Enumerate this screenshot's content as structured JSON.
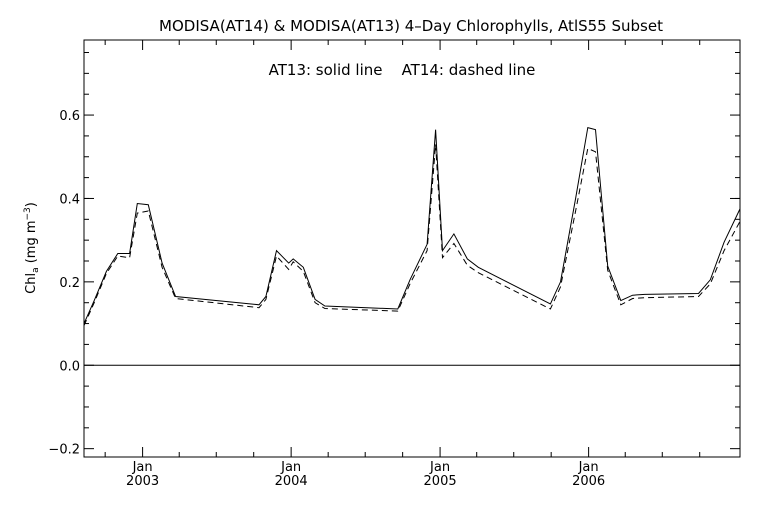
{
  "chart_data": {
    "type": "line",
    "title": "MODISA(AT14) & MODISA(AT13) 4–Day Chlorophylls, AtlS55 Subset",
    "annotation": "AT13: solid line    AT14: dashed line",
    "ylabel": "Chl",
    "ylabel_subscript": "a",
    "ylabel_units": " (mg m",
    "ylabel_superscript": "−3",
    "ylabel_close": ")",
    "xlim": [
      "2002-08-10",
      "2007-01-08"
    ],
    "ylim": [
      -0.22,
      0.78
    ],
    "y_ticks": [
      {
        "value": -0.2,
        "label": "−0.2"
      },
      {
        "value": 0.0,
        "label": "0.0"
      },
      {
        "value": 0.2,
        "label": "0.2"
      },
      {
        "value": 0.4,
        "label": "0.4"
      },
      {
        "value": 0.6,
        "label": "0.6"
      }
    ],
    "x_ticks": [
      {
        "date": "2003-01-01",
        "month": "Jan",
        "year": "2003"
      },
      {
        "date": "2004-01-01",
        "month": "Jan",
        "year": "2004"
      },
      {
        "date": "2005-01-01",
        "month": "Jan",
        "year": "2005"
      },
      {
        "date": "2006-01-01",
        "month": "Jan",
        "year": "2006"
      }
    ],
    "reference_line": 0.0,
    "series": [
      {
        "name": "AT13",
        "style": "solid",
        "points": [
          [
            "2002-08-10",
            0.1
          ],
          [
            "2002-09-04",
            0.155
          ],
          [
            "2002-10-04",
            0.225
          ],
          [
            "2002-11-01",
            0.268
          ],
          [
            "2002-11-30",
            0.268
          ],
          [
            "2002-12-19",
            0.388
          ],
          [
            "2003-01-15",
            0.385
          ],
          [
            "2003-02-18",
            0.245
          ],
          [
            "2003-03-23",
            0.165
          ],
          [
            "2003-10-14",
            0.145
          ],
          [
            "2003-10-31",
            0.165
          ],
          [
            "2003-11-26",
            0.275
          ],
          [
            "2003-12-26",
            0.245
          ],
          [
            "2004-01-06",
            0.255
          ],
          [
            "2004-01-31",
            0.235
          ],
          [
            "2004-02-29",
            0.158
          ],
          [
            "2004-03-24",
            0.142
          ],
          [
            "2004-09-19",
            0.135
          ],
          [
            "2004-10-19",
            0.205
          ],
          [
            "2004-11-30",
            0.29
          ],
          [
            "2004-12-21",
            0.565
          ],
          [
            "2005-01-07",
            0.275
          ],
          [
            "2005-02-04",
            0.315
          ],
          [
            "2005-03-09",
            0.255
          ],
          [
            "2005-04-05",
            0.235
          ],
          [
            "2005-09-29",
            0.147
          ],
          [
            "2005-10-24",
            0.2
          ],
          [
            "2005-11-30",
            0.4
          ],
          [
            "2005-12-30",
            0.57
          ],
          [
            "2006-01-18",
            0.565
          ],
          [
            "2006-02-17",
            0.238
          ],
          [
            "2006-03-21",
            0.155
          ],
          [
            "2006-04-19",
            0.168
          ],
          [
            "2006-05-19",
            0.17
          ],
          [
            "2006-09-28",
            0.172
          ],
          [
            "2006-10-27",
            0.205
          ],
          [
            "2006-11-30",
            0.295
          ],
          [
            "2007-01-08",
            0.375
          ]
        ]
      },
      {
        "name": "AT14",
        "style": "dashed",
        "points": [
          [
            "2002-08-10",
            0.095
          ],
          [
            "2002-09-04",
            0.15
          ],
          [
            "2002-10-04",
            0.22
          ],
          [
            "2002-11-01",
            0.262
          ],
          [
            "2002-11-30",
            0.258
          ],
          [
            "2002-12-19",
            0.365
          ],
          [
            "2003-01-15",
            0.37
          ],
          [
            "2003-02-18",
            0.235
          ],
          [
            "2003-03-23",
            0.16
          ],
          [
            "2003-10-14",
            0.138
          ],
          [
            "2003-10-31",
            0.158
          ],
          [
            "2003-11-26",
            0.262
          ],
          [
            "2003-12-26",
            0.23
          ],
          [
            "2004-01-06",
            0.248
          ],
          [
            "2004-01-31",
            0.225
          ],
          [
            "2004-02-29",
            0.15
          ],
          [
            "2004-03-24",
            0.136
          ],
          [
            "2004-09-19",
            0.13
          ],
          [
            "2004-10-19",
            0.195
          ],
          [
            "2004-11-30",
            0.275
          ],
          [
            "2004-12-21",
            0.53
          ],
          [
            "2005-01-07",
            0.258
          ],
          [
            "2005-02-04",
            0.292
          ],
          [
            "2005-03-09",
            0.24
          ],
          [
            "2005-04-05",
            0.222
          ],
          [
            "2005-09-29",
            0.135
          ],
          [
            "2005-10-24",
            0.188
          ],
          [
            "2005-11-30",
            0.37
          ],
          [
            "2005-12-30",
            0.52
          ],
          [
            "2006-01-18",
            0.512
          ],
          [
            "2006-02-17",
            0.228
          ],
          [
            "2006-03-21",
            0.145
          ],
          [
            "2006-04-19",
            0.16
          ],
          [
            "2006-05-19",
            0.162
          ],
          [
            "2006-09-28",
            0.165
          ],
          [
            "2006-10-27",
            0.195
          ],
          [
            "2006-11-30",
            0.275
          ],
          [
            "2007-01-08",
            0.345
          ]
        ]
      }
    ]
  }
}
